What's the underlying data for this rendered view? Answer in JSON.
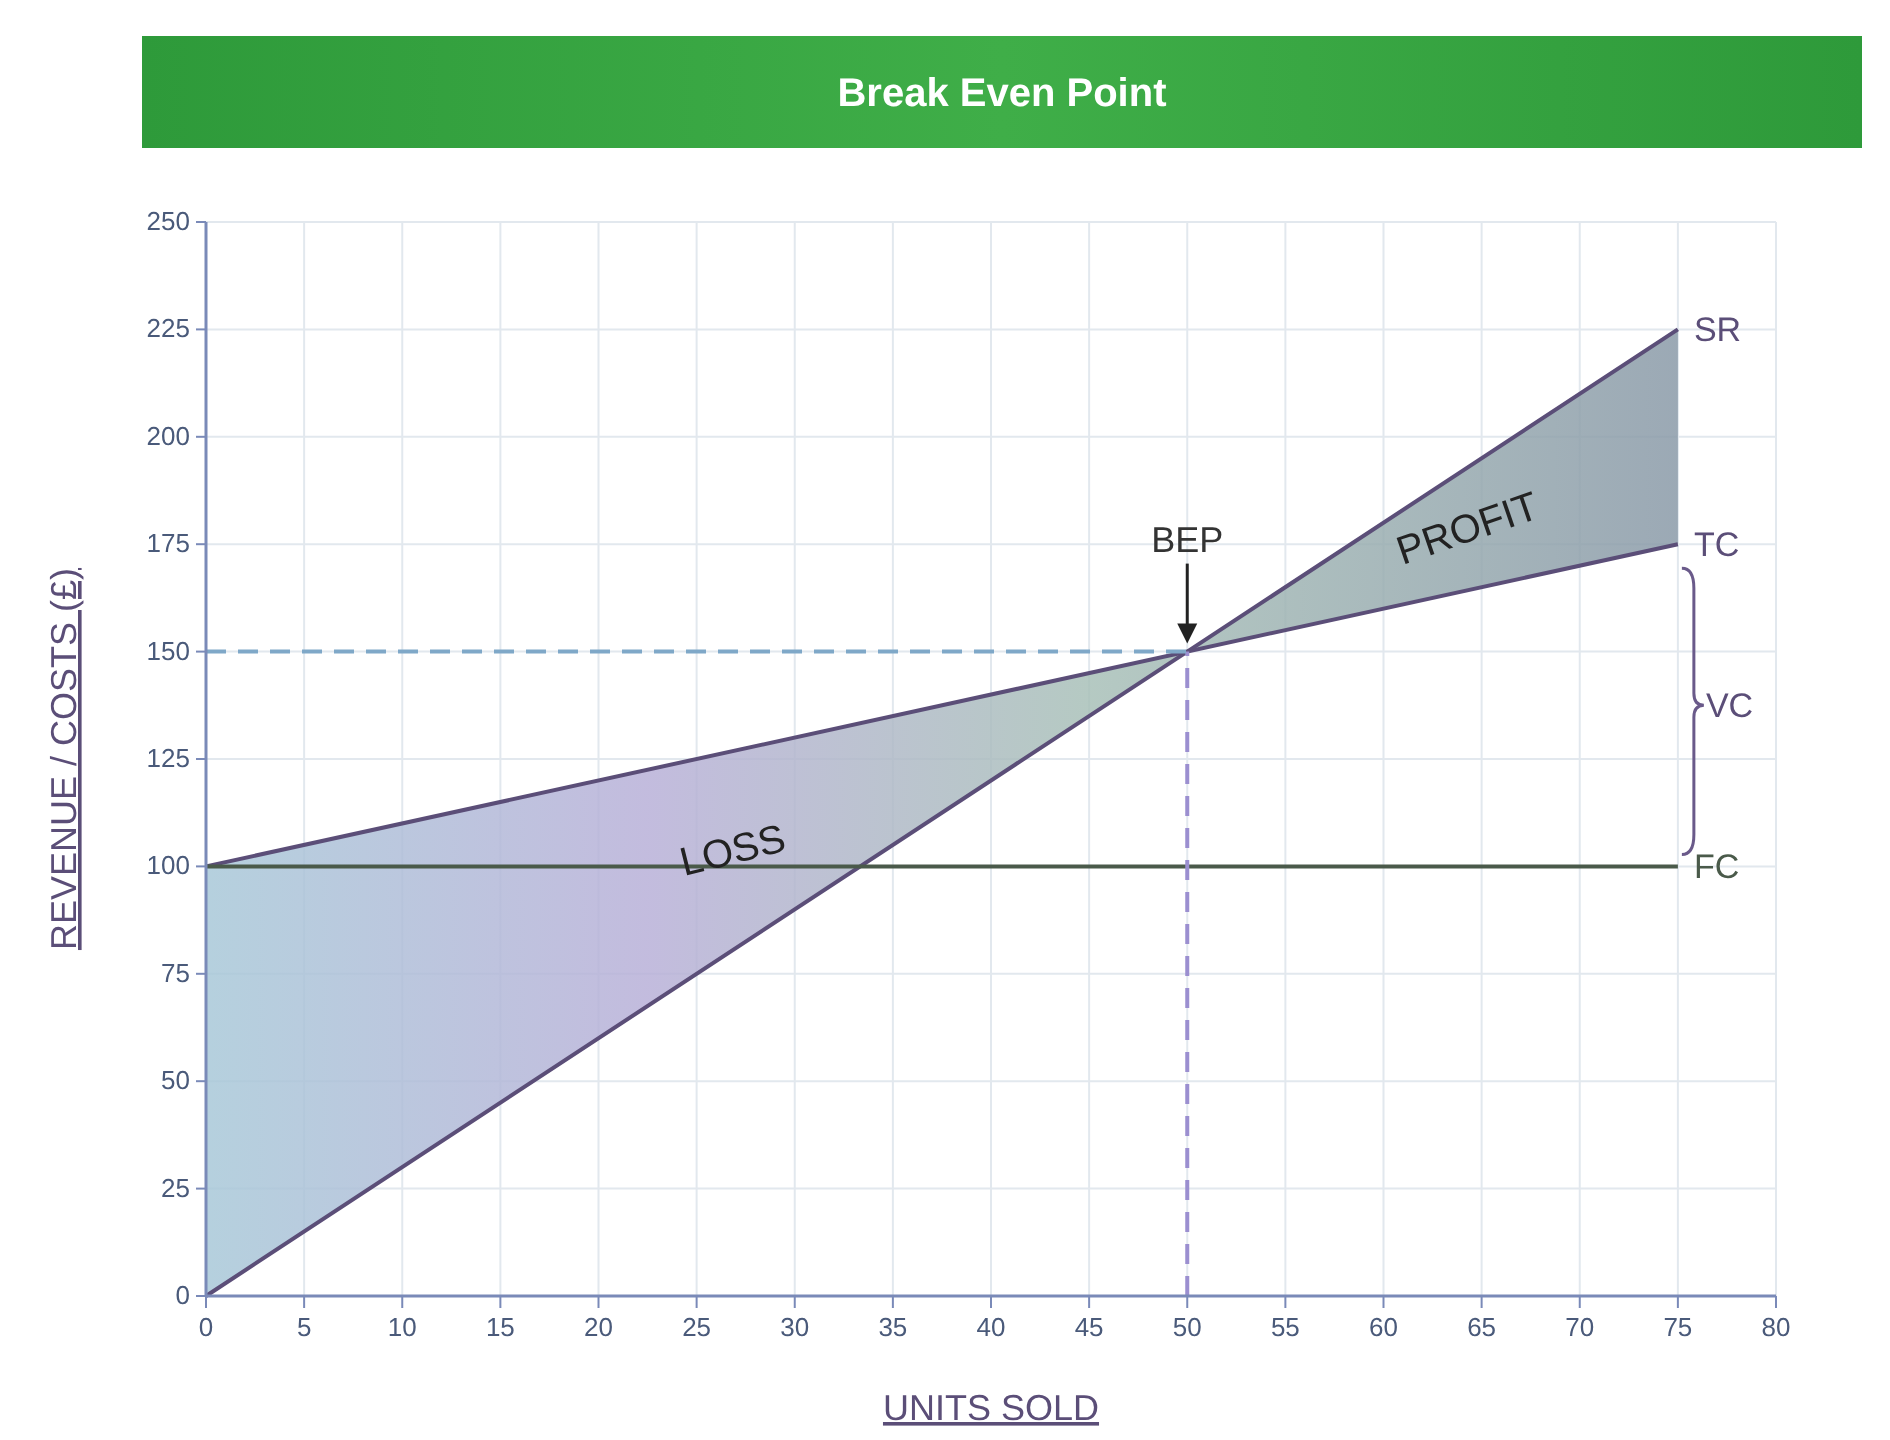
{
  "chart_data": {
    "type": "line",
    "title": "Break Even Point",
    "xlabel": "UNITS SOLD",
    "ylabel": "REVENUE / COSTS (£)",
    "xlim": [
      0,
      80
    ],
    "xticks": [
      0,
      5,
      10,
      15,
      20,
      25,
      30,
      35,
      40,
      45,
      50,
      55,
      60,
      65,
      70,
      75,
      80
    ],
    "ylim": [
      0,
      250
    ],
    "yticks": [
      0,
      25,
      50,
      75,
      100,
      125,
      150,
      175,
      200,
      225,
      250
    ],
    "grid": true,
    "line_style": "solid",
    "marker": "none",
    "series": [
      {
        "name": "SR",
        "color": "#5b4e78",
        "x": [
          0,
          50,
          75
        ],
        "values": [
          0,
          150,
          225
        ],
        "lower": [
          0,
          150,
          175
        ],
        "upper": [
          100,
          150,
          225
        ]
      },
      {
        "name": "TC",
        "color": "#5b4e78",
        "x": [
          0,
          75
        ],
        "values": [
          100,
          175
        ]
      },
      {
        "name": "FC",
        "color": "#4a5a4a",
        "x": [
          0,
          75
        ],
        "values": [
          100,
          100
        ]
      }
    ],
    "ref_lines": [
      {
        "axis": "x",
        "value": 50,
        "color": "#9b8fd0",
        "line_style": "dashed"
      },
      {
        "axis": "y",
        "value": 150,
        "color": "#7fa8c8",
        "line_style": "dashed"
      }
    ],
    "annotations": [
      {
        "text": "BEP",
        "x": 50,
        "y": 150
      },
      "LOSS",
      "PROFIT",
      "VC"
    ]
  }
}
